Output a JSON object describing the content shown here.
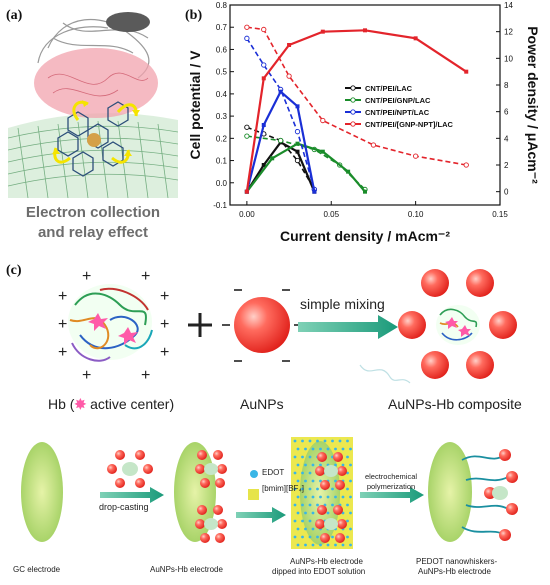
{
  "panels": {
    "a": {
      "label": "(a)",
      "caption_line1": "Electron collection",
      "caption_line2": "and relay effect"
    },
    "b": {
      "label": "(b)"
    },
    "c": {
      "label": "(c)",
      "top_row": {
        "hb_label": "Hb (",
        "hb_label_end": " active center)",
        "aunps_label": "AuNPs",
        "mixing_label": "simple mixing",
        "composite_label": "AuNPs-Hb composite"
      },
      "bottom_row": {
        "drop_casting": "drop-casting",
        "edot_legend": "EDOT",
        "bmim_legend": "[bmim][BF₄]",
        "electrochem_line1": "electrochemical",
        "electrochem_line2": "polymerization",
        "step_labels": [
          "GC electrode",
          "AuNPs-Hb electrode",
          "AuNPs-Hb electrode",
          "dipped into EDOT solution",
          "PEDOT nanowhiskers-",
          "AuNPs-Hb electrode"
        ]
      }
    }
  },
  "chart_data": {
    "type": "line",
    "xlabel": "Current density / mAcm⁻²",
    "ylabel_left": "Cell potential / V",
    "ylabel_right": "Power density / μAcm⁻²",
    "xlim": [
      -0.01,
      0.15
    ],
    "ylim_left": [
      -0.1,
      0.8
    ],
    "ylim_right": [
      -1,
      14
    ],
    "x_ticks": [
      "0.00",
      "0.05",
      "0.10",
      "0.15"
    ],
    "y_left_ticks": [
      "-0.1",
      "0.0",
      "0.1",
      "0.2",
      "0.3",
      "0.4",
      "0.5",
      "0.6",
      "0.7",
      "0.8"
    ],
    "y_right_ticks": [
      "0",
      "2",
      "4",
      "6",
      "8",
      "10",
      "12",
      "14"
    ],
    "legend_position": "center-right",
    "series": [
      {
        "name": "CNT/PEI/LAC",
        "color": "#111111",
        "potential": [
          [
            0.0,
            0.25
          ],
          [
            0.01,
            0.22
          ],
          [
            0.02,
            0.19
          ],
          [
            0.03,
            0.1
          ],
          [
            0.04,
            -0.03
          ]
        ],
        "power": [
          [
            0.0,
            0.0
          ],
          [
            0.01,
            2.0
          ],
          [
            0.02,
            3.7
          ],
          [
            0.03,
            3.0
          ],
          [
            0.04,
            0.0
          ]
        ]
      },
      {
        "name": "CNT/PEI/GNP/LAC",
        "color": "#1a8c2a",
        "potential": [
          [
            0.0,
            0.21
          ],
          [
            0.02,
            0.19
          ],
          [
            0.04,
            0.15
          ],
          [
            0.055,
            0.08
          ],
          [
            0.07,
            -0.03
          ]
        ],
        "power": [
          [
            0.0,
            0.0
          ],
          [
            0.015,
            2.5
          ],
          [
            0.03,
            3.6
          ],
          [
            0.045,
            3.0
          ],
          [
            0.06,
            1.5
          ],
          [
            0.07,
            0.0
          ]
        ]
      },
      {
        "name": "CNT/PEI/NPT/LAC",
        "color": "#1a2fd6",
        "potential": [
          [
            0.0,
            0.65
          ],
          [
            0.01,
            0.53
          ],
          [
            0.02,
            0.42
          ],
          [
            0.03,
            0.23
          ],
          [
            0.04,
            -0.03
          ]
        ],
        "power": [
          [
            0.0,
            0.0
          ],
          [
            0.01,
            5.0
          ],
          [
            0.02,
            7.5
          ],
          [
            0.03,
            6.4
          ],
          [
            0.04,
            0.0
          ]
        ]
      },
      {
        "name": "CNT/PEI/[GNP-NPT]/LAC",
        "color": "#e3242b",
        "potential": [
          [
            0.0,
            0.7
          ],
          [
            0.01,
            0.69
          ],
          [
            0.025,
            0.48
          ],
          [
            0.045,
            0.28
          ],
          [
            0.075,
            0.17
          ],
          [
            0.1,
            0.12
          ],
          [
            0.13,
            0.08
          ]
        ],
        "power": [
          [
            0.0,
            0.0
          ],
          [
            0.01,
            8.5
          ],
          [
            0.025,
            11.0
          ],
          [
            0.045,
            12.0
          ],
          [
            0.07,
            12.1
          ],
          [
            0.1,
            11.5
          ],
          [
            0.13,
            9.0
          ]
        ]
      }
    ]
  }
}
